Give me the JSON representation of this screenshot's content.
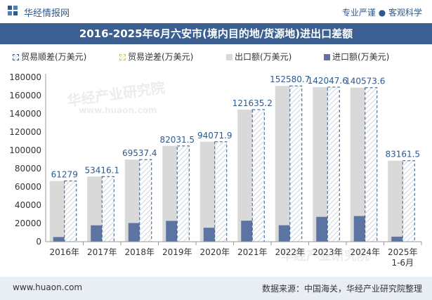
{
  "header": {
    "site_name": "华经情报网",
    "slogan": "专业严谨 ● 客观科学"
  },
  "chart_data": {
    "type": "bar",
    "title": "2016-2025年6月六安市(境内目的地/货源地)进出口差额",
    "categories": [
      "2016年",
      "2017年",
      "2018年",
      "2019年",
      "2020年",
      "2021年",
      "2022年",
      "2023年",
      "2024年",
      "2025年\n1-6月"
    ],
    "series": [
      {
        "name": "贸易顺差(万美元)",
        "values": [
          61279,
          53416.1,
          69537.4,
          82031.5,
          94071.9,
          121635.2,
          152580.7,
          142047.6,
          140573.6,
          83161.5
        ],
        "color": "#2d5a8e",
        "style": "hatched"
      },
      {
        "name": "贸易逆差(万美元)",
        "values": [
          0,
          0,
          0,
          0,
          0,
          0,
          0,
          0,
          0,
          0
        ],
        "color": "#e8b94a",
        "style": "hatched"
      },
      {
        "name": "出口额(万美元)",
        "values": [
          66400,
          71300,
          89900,
          104800,
          109400,
          144600,
          170600,
          169200,
          168700,
          88700
        ],
        "color": "#d9d9d9"
      },
      {
        "name": "进口额(万美元)",
        "values": [
          5100,
          17900,
          20400,
          22800,
          15300,
          23000,
          18000,
          27200,
          28100,
          5500
        ],
        "color": "#5b74a2"
      }
    ],
    "data_labels": [
      "61279",
      "53416.1",
      "69537.4",
      "82031.5",
      "94071.9",
      "121635.2",
      "152580.7",
      "142047.6",
      "140573.6",
      "83161.5"
    ],
    "ylim": [
      0,
      180000
    ],
    "yticks": [
      "0",
      "20000",
      "40000",
      "60000",
      "80000",
      "100000",
      "120000",
      "140000",
      "160000",
      "180000"
    ],
    "xlabel": "",
    "ylabel": "",
    "legend_position": "top",
    "grid": false
  },
  "watermark": {
    "text": "华经产业研究院",
    "url": "www.huaon.com"
  },
  "footer": {
    "url": "www.huaon.com",
    "source": "数据来源：中国海关，华经产业研究院整理"
  }
}
